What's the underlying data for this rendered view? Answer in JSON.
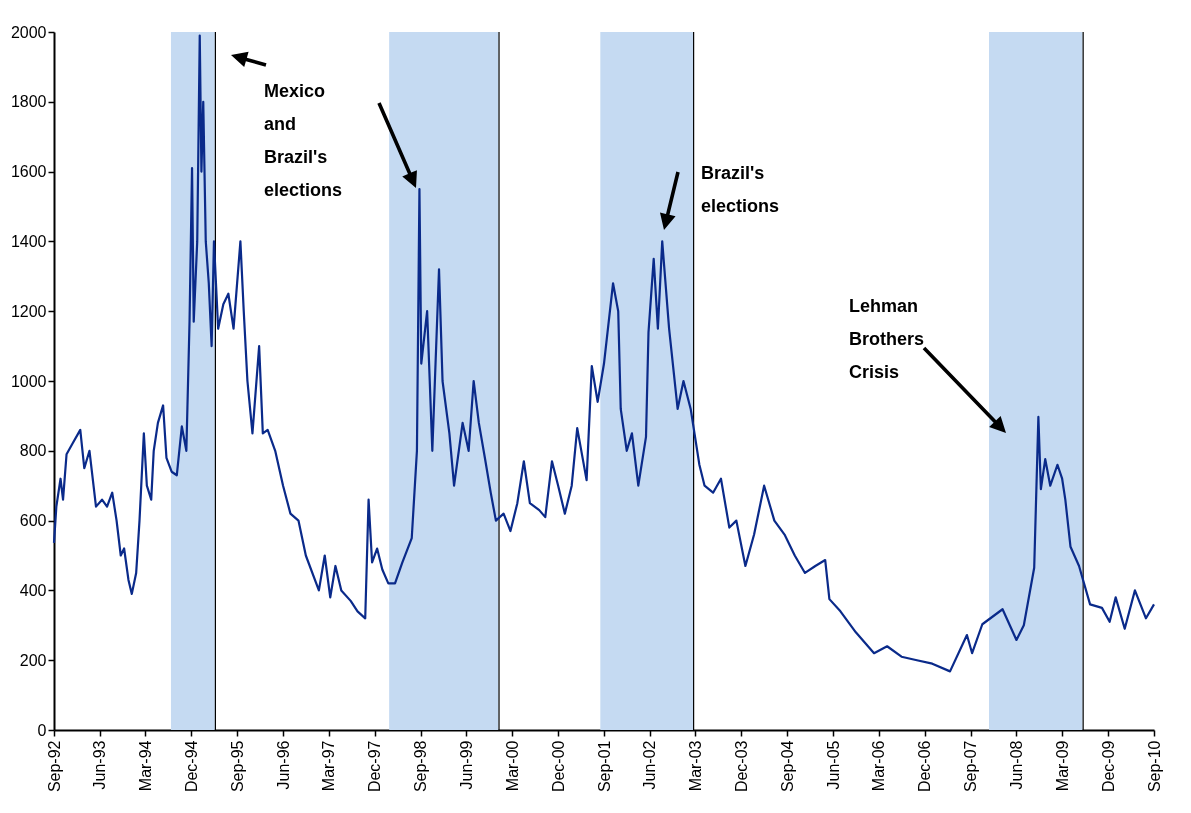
{
  "chart_data": {
    "type": "line",
    "x": [
      "1992-09-01",
      "1992-09-15",
      "1992-10-10",
      "1992-10-25",
      "1992-11-15",
      "1992-12-20",
      "1993-02-05",
      "1993-03-01",
      "1993-04-01",
      "1993-05-10",
      "1993-06-15",
      "1993-07-15",
      "1993-08-15",
      "1993-09-10",
      "1993-10-05",
      "1993-10-25",
      "1993-11-20",
      "1993-12-10",
      "1994-01-05",
      "1994-01-25",
      "1994-02-20",
      "1994-03-10",
      "1994-04-05",
      "1994-04-20",
      "1994-05-15",
      "1994-06-15",
      "1994-07-05",
      "1994-08-05",
      "1994-09-05",
      "1994-10-05",
      "1994-11-01",
      "1994-11-20",
      "1994-12-05",
      "1994-12-15",
      "1995-01-05",
      "1995-01-20",
      "1995-01-30",
      "1995-02-10",
      "1995-02-25",
      "1995-03-15",
      "1995-04-01",
      "1995-04-15",
      "1995-05-10",
      "1995-06-10",
      "1995-07-10",
      "1995-08-10",
      "1995-09-20",
      "1995-10-10",
      "1995-11-01",
      "1995-12-01",
      "1996-01-10",
      "1996-02-01",
      "1996-03-01",
      "1996-04-15",
      "1996-06-01",
      "1996-07-15",
      "1996-09-01",
      "1996-10-15",
      "1997-01-01",
      "1997-02-05",
      "1997-03-10",
      "1997-04-10",
      "1997-05-15",
      "1997-07-10",
      "1997-08-20",
      "1997-10-05",
      "1997-10-25",
      "1997-11-15",
      "1997-12-15",
      "1998-01-15",
      "1998-02-20",
      "1998-04-01",
      "1998-05-15",
      "1998-07-10",
      "1998-08-10",
      "1998-08-25",
      "1998-09-05",
      "1998-10-10",
      "1998-11-10",
      "1998-12-20",
      "1999-01-10",
      "1999-02-20",
      "1999-03-20",
      "1999-05-10",
      "1999-06-15",
      "1999-07-15",
      "1999-08-15",
      "1999-09-20",
      "1999-10-25",
      "1999-11-25",
      "2000-01-10",
      "2000-02-20",
      "2000-04-01",
      "2000-05-10",
      "2000-06-15",
      "2000-08-10",
      "2000-09-15",
      "2000-10-25",
      "2000-12-01",
      "2001-01-10",
      "2001-02-20",
      "2001-03-25",
      "2001-05-20",
      "2001-06-20",
      "2001-07-25",
      "2001-09-01",
      "2001-10-25",
      "2001-11-25",
      "2001-12-10",
      "2002-01-15",
      "2002-02-15",
      "2002-03-25",
      "2002-05-10",
      "2002-05-25",
      "2002-06-25",
      "2002-07-20",
      "2002-08-15",
      "2002-09-25",
      "2002-11-15",
      "2002-12-20",
      "2003-02-01",
      "2003-03-25",
      "2003-04-25",
      "2003-06-15",
      "2003-08-01",
      "2003-09-20",
      "2003-11-01",
      "2003-12-25",
      "2004-02-15",
      "2004-04-15",
      "2004-06-15",
      "2004-08-15",
      "2004-10-15",
      "2004-12-15",
      "2005-02-15",
      "2005-04-15",
      "2005-05-10",
      "2005-07-15",
      "2005-10-15",
      "2006-02-01",
      "2006-04-20",
      "2006-07-15",
      "2006-10-15",
      "2007-01-15",
      "2007-05-01",
      "2007-08-10",
      "2007-09-10",
      "2007-11-10",
      "2008-03-10",
      "2008-06-01",
      "2008-07-15",
      "2008-09-15",
      "2008-10-10",
      "2008-10-25",
      "2008-11-20",
      "2008-12-20",
      "2009-02-01",
      "2009-03-01",
      "2009-03-20",
      "2009-04-20",
      "2009-06-10",
      "2009-08-15",
      "2009-10-25",
      "2009-12-10",
      "2010-01-15",
      "2010-03-10",
      "2010-05-10",
      "2010-07-15",
      "2010-09-01"
    ],
    "series": [
      {
        "color": "#0a2a8a",
        "values": [
          536,
          640,
          720,
          660,
          790,
          820,
          860,
          750,
          800,
          640,
          660,
          640,
          680,
          600,
          500,
          520,
          430,
          390,
          450,
          600,
          850,
          700,
          660,
          800,
          880,
          930,
          780,
          740,
          730,
          870,
          800,
          1170,
          1610,
          1170,
          1400,
          1990,
          1600,
          1800,
          1400,
          1280,
          1100,
          1400,
          1150,
          1220,
          1250,
          1150,
          1400,
          1200,
          1000,
          850,
          1100,
          850,
          860,
          800,
          700,
          620,
          600,
          500,
          400,
          500,
          380,
          470,
          400,
          370,
          340,
          320,
          660,
          480,
          520,
          460,
          420,
          420,
          480,
          550,
          800,
          1550,
          1050,
          1200,
          800,
          1320,
          1000,
          850,
          700,
          880,
          800,
          1000,
          880,
          780,
          680,
          600,
          620,
          570,
          650,
          770,
          650,
          630,
          610,
          770,
          700,
          620,
          700,
          865,
          716,
          1043,
          940,
          1050,
          1280,
          1200,
          920,
          800,
          850,
          700,
          840,
          1140,
          1350,
          1150,
          1400,
          1150,
          920,
          1000,
          920,
          760,
          700,
          680,
          720,
          580,
          600,
          470,
          560,
          700,
          600,
          560,
          500,
          450,
          470,
          487,
          375,
          340,
          280,
          220,
          240,
          210,
          200,
          190,
          168,
          272,
          220,
          303,
          346,
          258,
          300,
          465,
          897,
          690,
          776,
          700,
          760,
          720,
          660,
          525,
          470,
          360,
          350,
          310,
          380,
          290,
          400,
          320,
          360
        ]
      }
    ],
    "xlim": [
      "1992-09-01",
      "2010-09-01"
    ],
    "xticks": [
      {
        "value": "1992-09-01",
        "label": "Sep-92"
      },
      {
        "value": "1993-06-01",
        "label": "Jun-93"
      },
      {
        "value": "1994-03-01",
        "label": "Mar-94"
      },
      {
        "value": "1994-12-01",
        "label": "Dec-94"
      },
      {
        "value": "1995-09-01",
        "label": "Sep-95"
      },
      {
        "value": "1996-06-01",
        "label": "Jun-96"
      },
      {
        "value": "1997-03-01",
        "label": "Mar-97"
      },
      {
        "value": "1997-12-01",
        "label": "Dec-97"
      },
      {
        "value": "1998-09-01",
        "label": "Sep-98"
      },
      {
        "value": "1999-06-01",
        "label": "Jun-99"
      },
      {
        "value": "2000-03-01",
        "label": "Mar-00"
      },
      {
        "value": "2000-12-01",
        "label": "Dec-00"
      },
      {
        "value": "2001-09-01",
        "label": "Sep-01"
      },
      {
        "value": "2002-06-01",
        "label": "Jun-02"
      },
      {
        "value": "2003-03-01",
        "label": "Mar-03"
      },
      {
        "value": "2003-12-01",
        "label": "Dec-03"
      },
      {
        "value": "2004-09-01",
        "label": "Sep-04"
      },
      {
        "value": "2005-06-01",
        "label": "Jun-05"
      },
      {
        "value": "2006-03-01",
        "label": "Mar-06"
      },
      {
        "value": "2006-12-01",
        "label": "Dec-06"
      },
      {
        "value": "2007-09-01",
        "label": "Sep-07"
      },
      {
        "value": "2008-06-01",
        "label": "Jun-08"
      },
      {
        "value": "2009-03-01",
        "label": "Mar-09"
      },
      {
        "value": "2009-12-01",
        "label": "Dec-09"
      },
      {
        "value": "2010-09-01",
        "label": "Sep-10"
      }
    ],
    "ylim": [
      0,
      2000
    ],
    "yticks": [
      0,
      200,
      400,
      600,
      800,
      1000,
      1200,
      1400,
      1600,
      1800,
      2000
    ],
    "grid": false,
    "marker": "none",
    "line_style": "solid",
    "bands": [
      {
        "axis": "x",
        "from": "1994-08-01",
        "to": "1995-04-20",
        "color": "#c5daf2"
      },
      {
        "axis": "x",
        "from": "1998-02-25",
        "to": "1999-12-10",
        "color": "#c5daf2"
      },
      {
        "axis": "x",
        "from": "2001-08-10",
        "to": "2003-02-15",
        "color": "#c5daf2"
      },
      {
        "axis": "x",
        "from": "2007-12-20",
        "to": "2009-07-01",
        "color": "#c5daf2"
      }
    ],
    "annotations": [
      "Mexico\nand\nBrazil's\nelections",
      "Brazil's\nelections",
      "Lehman\nBrothers\nCrisis"
    ]
  }
}
